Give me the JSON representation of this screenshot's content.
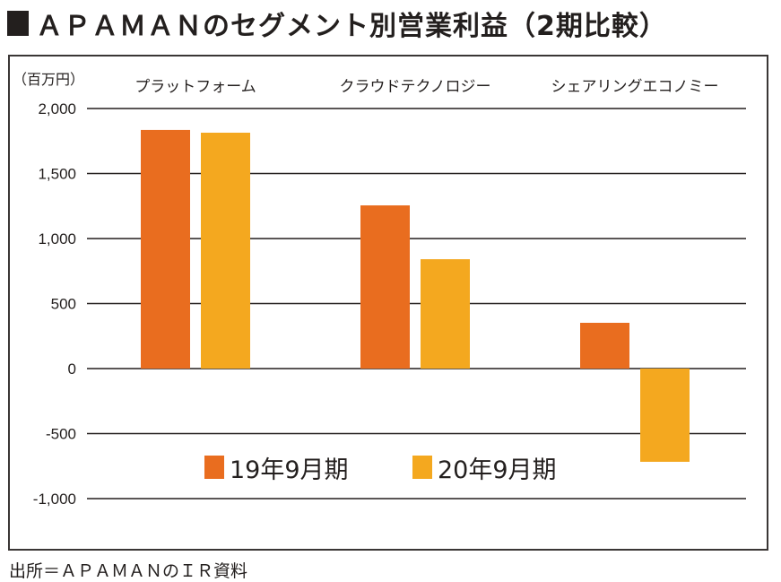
{
  "title": "ＡＰＡＭＡＮのセグメント別営業利益（2期比較）",
  "source": "出所＝ＡＰＡＭＡＮのＩＲ資料",
  "chart_data": {
    "type": "bar",
    "title": "ＡＰＡＭＡＮのセグメント別営業利益（2期比較）",
    "ylabel": "（百万円）",
    "xlabel": "",
    "categories": [
      "プラットフォーム",
      "クラウドテクノロジー",
      "シェアリングエコノミー"
    ],
    "series": [
      {
        "name": "19年9月期",
        "color": "#e96d1f",
        "values": [
          1835,
          1255,
          352
        ]
      },
      {
        "name": "20年9月期",
        "color": "#f4a81f",
        "values": [
          1814,
          841,
          -717
        ]
      }
    ],
    "ylim": [
      -1000,
      2000
    ],
    "yticks": [
      2000,
      1500,
      1000,
      500,
      0,
      -500,
      -1000
    ],
    "ytick_labels": [
      "2,000",
      "1,500",
      "1,000",
      "500",
      "0",
      "-500",
      "-1,000"
    ],
    "grid": true,
    "legend": "bottom-center"
  }
}
